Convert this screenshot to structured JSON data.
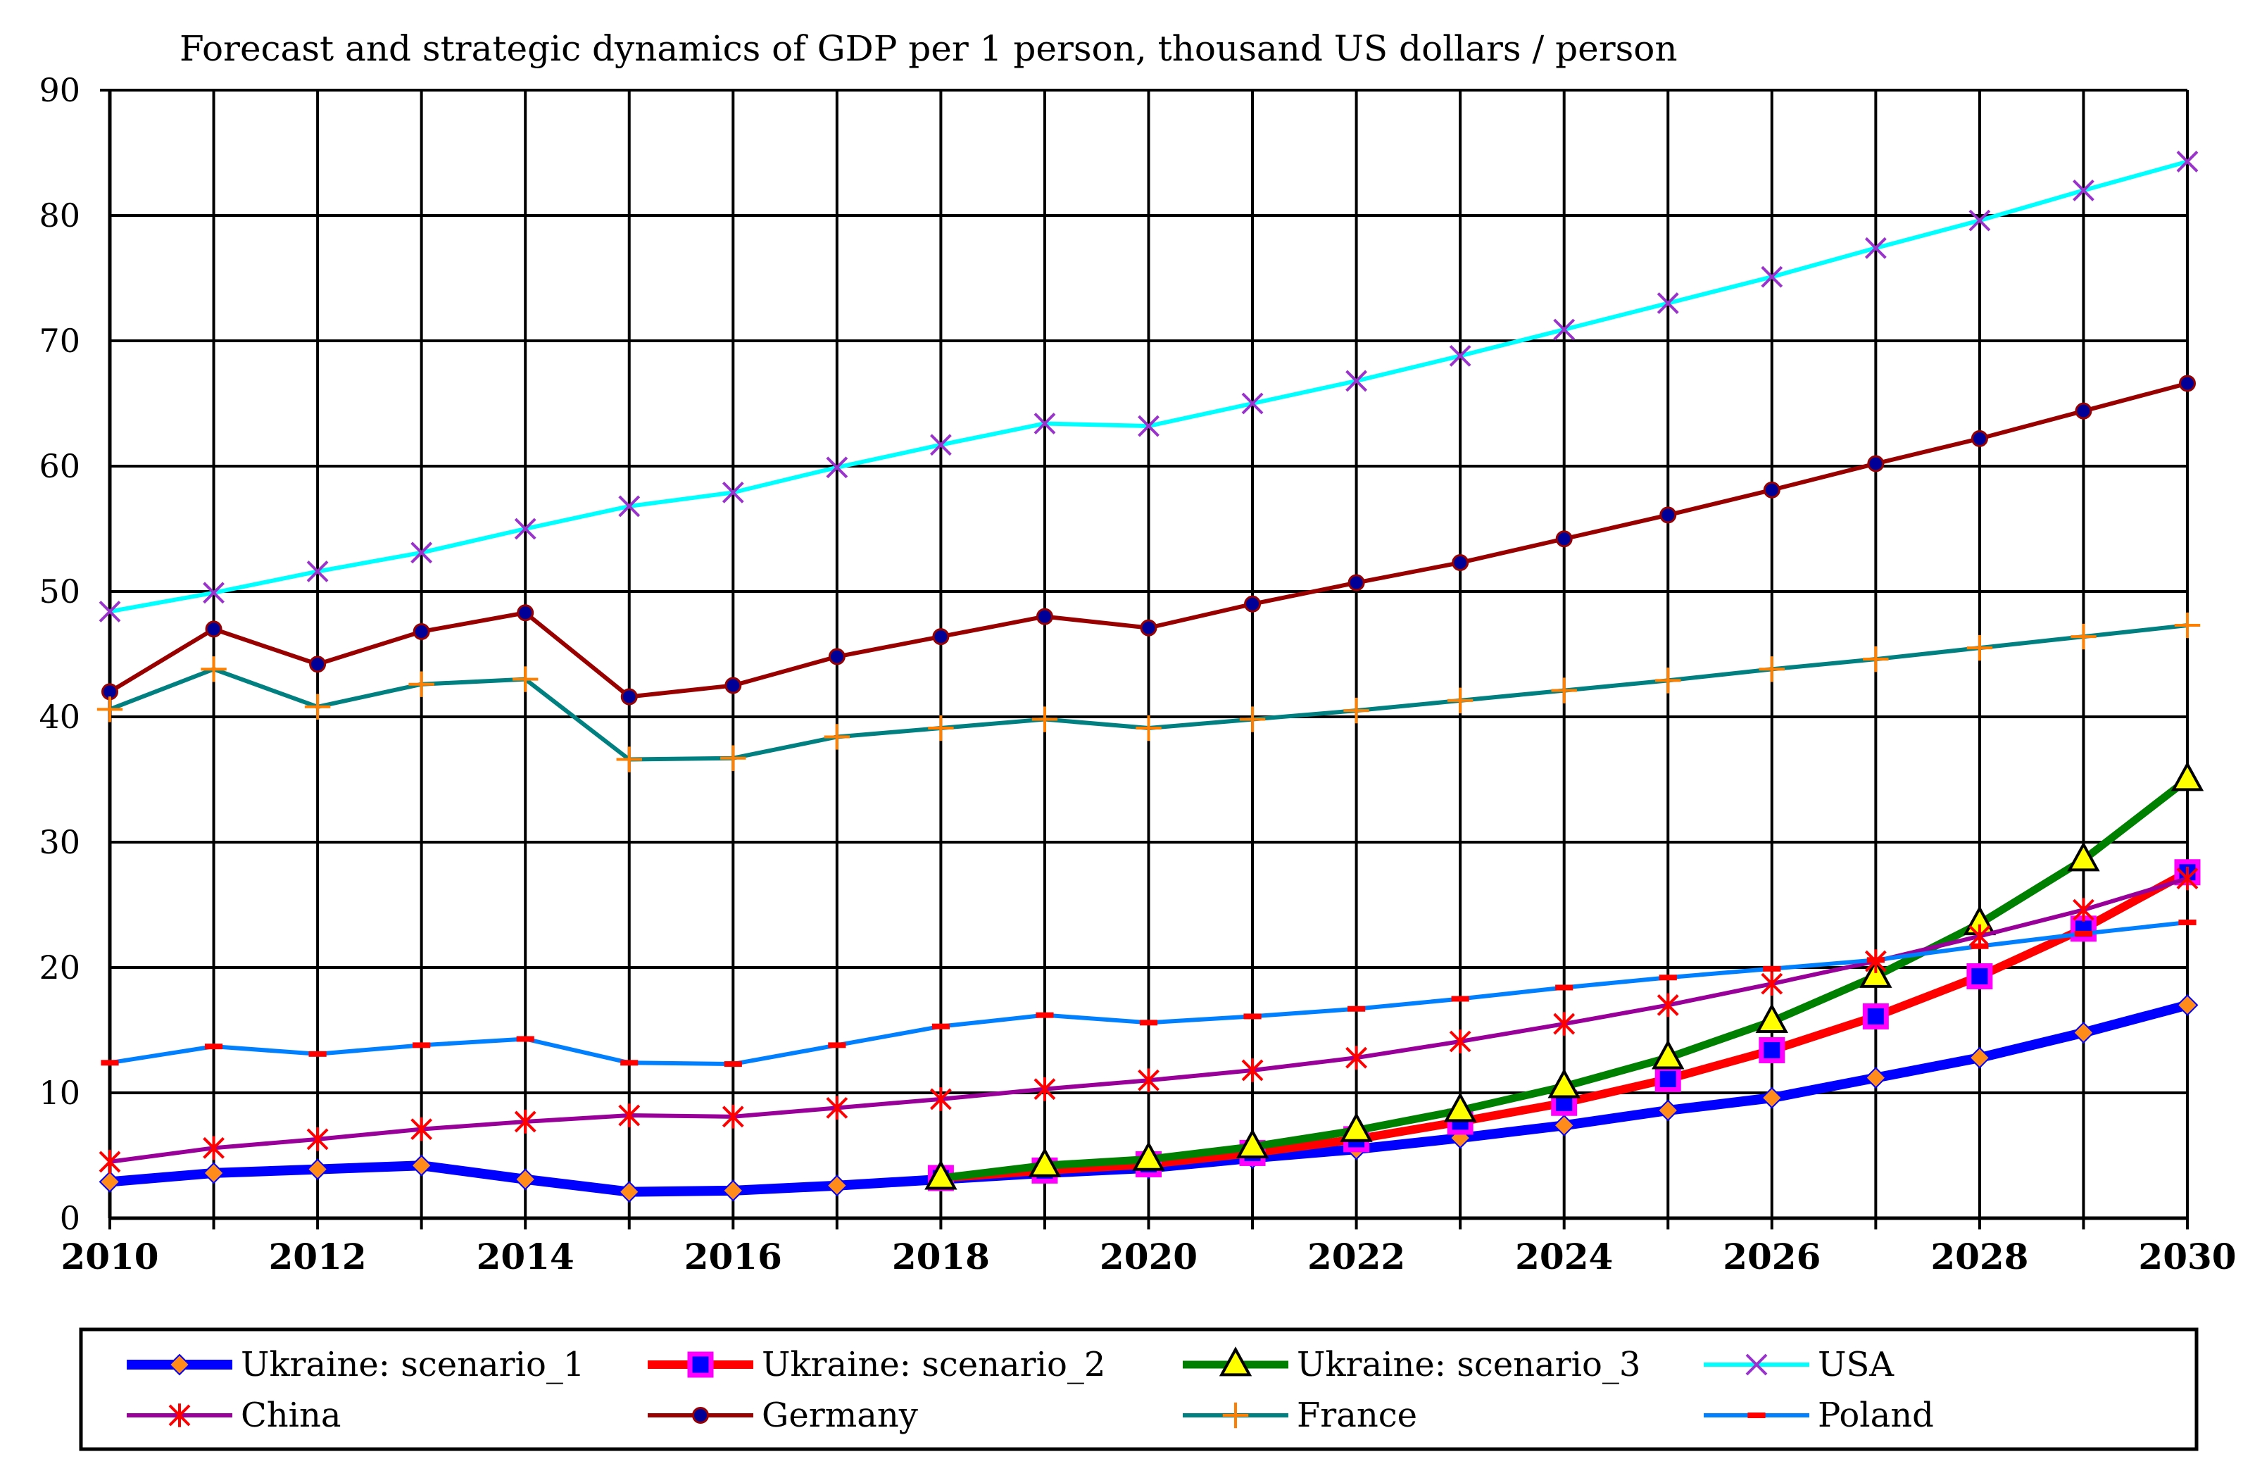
{
  "chart_data": {
    "type": "line",
    "title": "Forecast and strategic dynamics of GDP per 1 person, thousand US dollars / person",
    "xlabel": "",
    "ylabel": "",
    "xlim": [
      2010,
      2030
    ],
    "ylim": [
      0,
      90
    ],
    "grid": true,
    "legend_position": "bottom",
    "x": [
      2010,
      2011,
      2012,
      2013,
      2014,
      2015,
      2016,
      2017,
      2018,
      2019,
      2020,
      2021,
      2022,
      2023,
      2024,
      2025,
      2026,
      2027,
      2028,
      2029,
      2030
    ],
    "x_tick_labels": [
      "2010",
      "2012",
      "2014",
      "2016",
      "2018",
      "2020",
      "2022",
      "2024",
      "2026",
      "2028",
      "2030"
    ],
    "y_tick_labels": [
      "0",
      "10",
      "20",
      "30",
      "40",
      "50",
      "60",
      "70",
      "80",
      "90"
    ],
    "series": [
      {
        "name": "Ukraine: scenario_1",
        "color": "#0000ff",
        "marker": "diamond",
        "marker_color": "#ff8c1a",
        "x": [
          2010,
          2011,
          2012,
          2013,
          2014,
          2015,
          2016,
          2017,
          2018,
          2019,
          2020,
          2021,
          2022,
          2023,
          2024,
          2025,
          2026,
          2027,
          2028,
          2029,
          2030
        ],
        "values": [
          2.9,
          3.6,
          3.9,
          4.2,
          3.1,
          2.1,
          2.2,
          2.6,
          3.1,
          3.6,
          4.0,
          4.8,
          5.5,
          6.4,
          7.4,
          8.6,
          9.6,
          11.2,
          12.8,
          14.8,
          17.0
        ]
      },
      {
        "name": "Ukraine: scenario_2",
        "color": "#ff0000",
        "marker": "square",
        "marker_color": "#ff00ff",
        "x": [
          2018,
          2019,
          2020,
          2021,
          2022,
          2023,
          2024,
          2025,
          2026,
          2027,
          2028,
          2029,
          2030
        ],
        "values": [
          3.2,
          3.8,
          4.3,
          5.2,
          6.3,
          7.7,
          9.2,
          11.1,
          13.4,
          16.1,
          19.3,
          23.1,
          27.6
        ]
      },
      {
        "name": "Ukraine: scenario_3",
        "color": "#008000",
        "marker": "triangle",
        "marker_color": "#ffff00",
        "x": [
          2018,
          2019,
          2020,
          2021,
          2022,
          2023,
          2024,
          2025,
          2026,
          2027,
          2028,
          2029,
          2030
        ],
        "values": [
          3.2,
          4.2,
          4.7,
          5.7,
          7.0,
          8.6,
          10.5,
          12.8,
          15.7,
          19.3,
          23.5,
          28.6,
          35.0
        ]
      },
      {
        "name": "USA",
        "color": "#00ffff",
        "marker": "x",
        "marker_color": "#9933cc",
        "x": [
          2010,
          2011,
          2012,
          2013,
          2014,
          2015,
          2016,
          2017,
          2018,
          2019,
          2020,
          2021,
          2022,
          2023,
          2024,
          2025,
          2026,
          2027,
          2028,
          2029,
          2030
        ],
        "values": [
          48.4,
          49.9,
          51.6,
          53.1,
          55.0,
          56.8,
          57.9,
          59.9,
          61.7,
          63.4,
          63.2,
          65.0,
          66.8,
          68.8,
          70.9,
          73.0,
          75.1,
          77.4,
          79.6,
          82.0,
          84.3
        ]
      },
      {
        "name": "China",
        "color": "#990099",
        "marker": "asterisk",
        "marker_color": "#ff0000",
        "x": [
          2010,
          2011,
          2012,
          2013,
          2014,
          2015,
          2016,
          2017,
          2018,
          2019,
          2020,
          2021,
          2022,
          2023,
          2024,
          2025,
          2026,
          2027,
          2028,
          2029,
          2030
        ],
        "values": [
          4.5,
          5.6,
          6.3,
          7.1,
          7.7,
          8.2,
          8.1,
          8.8,
          9.5,
          10.3,
          11.0,
          11.8,
          12.8,
          14.1,
          15.5,
          17.0,
          18.7,
          20.5,
          22.5,
          24.6,
          27.1
        ]
      },
      {
        "name": "Germany",
        "color": "#990000",
        "marker": "circle",
        "marker_color": "#000099",
        "x": [
          2010,
          2011,
          2012,
          2013,
          2014,
          2015,
          2016,
          2017,
          2018,
          2019,
          2020,
          2021,
          2022,
          2023,
          2024,
          2025,
          2026,
          2027,
          2028,
          2029,
          2030
        ],
        "values": [
          42.0,
          47.0,
          44.2,
          46.8,
          48.3,
          41.6,
          42.5,
          44.8,
          46.4,
          48.0,
          47.1,
          49.0,
          50.7,
          52.3,
          54.2,
          56.1,
          58.1,
          60.2,
          62.2,
          64.4,
          66.6
        ]
      },
      {
        "name": "France",
        "color": "#008080",
        "marker": "plus",
        "marker_color": "#ff8000",
        "x": [
          2010,
          2011,
          2012,
          2013,
          2014,
          2015,
          2016,
          2017,
          2018,
          2019,
          2020,
          2021,
          2022,
          2023,
          2024,
          2025,
          2026,
          2027,
          2028,
          2029,
          2030
        ],
        "values": [
          40.6,
          43.8,
          40.8,
          42.6,
          43.0,
          36.6,
          36.7,
          38.4,
          39.1,
          39.8,
          39.1,
          39.8,
          40.5,
          41.3,
          42.1,
          42.9,
          43.8,
          44.6,
          45.5,
          46.4,
          47.3
        ]
      },
      {
        "name": "Poland",
        "color": "#0080ff",
        "marker": "dash",
        "marker_color": "#ff0000",
        "x": [
          2010,
          2011,
          2012,
          2013,
          2014,
          2015,
          2016,
          2017,
          2018,
          2019,
          2020,
          2021,
          2022,
          2023,
          2024,
          2025,
          2026,
          2027,
          2028,
          2029,
          2030
        ],
        "values": [
          12.4,
          13.7,
          13.1,
          13.8,
          14.3,
          12.4,
          12.3,
          13.8,
          15.3,
          16.2,
          15.6,
          16.1,
          16.7,
          17.5,
          18.4,
          19.2,
          19.9,
          20.6,
          21.7,
          22.7,
          23.6
        ]
      }
    ]
  }
}
